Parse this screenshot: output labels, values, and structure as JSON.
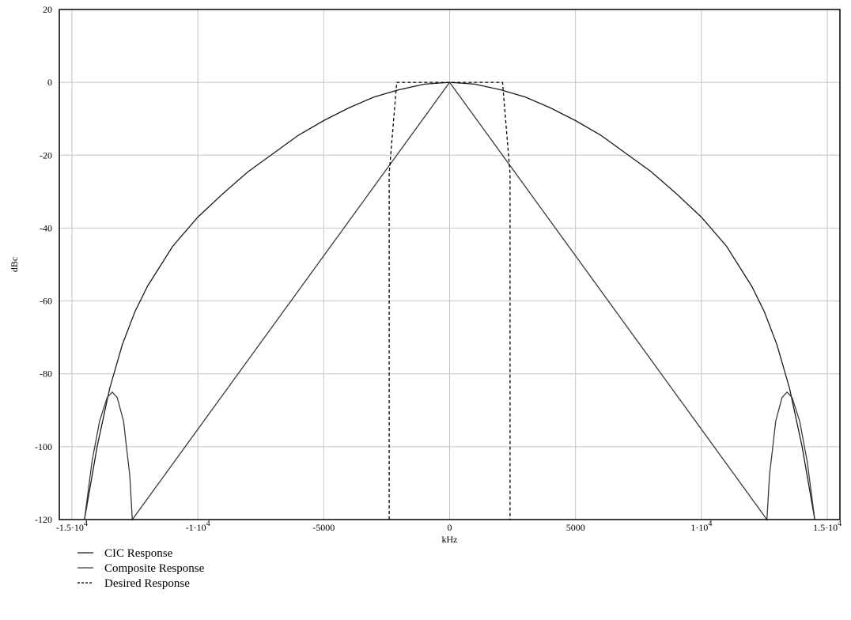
{
  "chart_data": {
    "type": "line",
    "title": "",
    "xlabel": "kHz",
    "ylabel": "dBc",
    "xlim": [
      -15500,
      15500
    ],
    "ylim": [
      -120,
      20
    ],
    "grid": true,
    "legend_position": "bottom-left",
    "x_ticks": [
      {
        "value": -15000,
        "label": "-1.5·10",
        "exp": "4"
      },
      {
        "value": -10000,
        "label": "-1·10",
        "exp": "4"
      },
      {
        "value": -5000,
        "label": "-5000",
        "exp": ""
      },
      {
        "value": 0,
        "label": "0",
        "exp": ""
      },
      {
        "value": 5000,
        "label": "5000",
        "exp": ""
      },
      {
        "value": 10000,
        "label": "1·10",
        "exp": "4"
      },
      {
        "value": 15000,
        "label": "1.5·10",
        "exp": "4"
      }
    ],
    "y_ticks": [
      {
        "value": 20,
        "label": "20"
      },
      {
        "value": 0,
        "label": "0"
      },
      {
        "value": -20,
        "label": "-20"
      },
      {
        "value": -40,
        "label": "-40"
      },
      {
        "value": -60,
        "label": "-60"
      },
      {
        "value": -80,
        "label": "-80"
      },
      {
        "value": -100,
        "label": "-100"
      },
      {
        "value": -120,
        "label": "-120"
      }
    ],
    "series": [
      {
        "name": "CIC Response",
        "style": "solid",
        "color": "#1a1a1a",
        "x": [
          -14500,
          -14000,
          -13500,
          -13000,
          -12500,
          -12000,
          -11000,
          -10000,
          -9000,
          -8000,
          -7000,
          -6000,
          -5000,
          -4000,
          -3000,
          -2000,
          -1000,
          0,
          1000,
          2000,
          3000,
          4000,
          5000,
          6000,
          7000,
          8000,
          9000,
          10000,
          11000,
          12000,
          12500,
          13000,
          13500,
          14000,
          14500
        ],
        "y": [
          -120,
          -100,
          -84,
          -72,
          -63,
          -56,
          -45,
          -37,
          -30.5,
          -24.5,
          -19.5,
          -14.5,
          -10.5,
          -7,
          -4,
          -2,
          -0.5,
          0,
          -0.5,
          -2,
          -4,
          -7,
          -10.5,
          -14.5,
          -19.5,
          -24.5,
          -30.5,
          -37,
          -45,
          -56,
          -63,
          -72,
          -84,
          -100,
          -120
        ]
      },
      {
        "name": "Composite Response",
        "style": "solid",
        "color": "#3a3a3a",
        "x": [
          -14500,
          -14200,
          -13900,
          -13600,
          -13400,
          -13200,
          -12950,
          -12700,
          -12600,
          0,
          12600,
          12700,
          12950,
          13200,
          13400,
          13600,
          13900,
          14200,
          14500
        ],
        "y": [
          -120,
          -104,
          -93,
          -86.5,
          -85,
          -86.5,
          -93,
          -108,
          -120,
          0,
          -120,
          -108,
          -93,
          -86.5,
          -85,
          -86.5,
          -93,
          -104,
          -120
        ]
      },
      {
        "name": "Desired Response",
        "style": "dashed",
        "color": "#000000",
        "x": [
          -2400,
          -2400,
          -2100,
          2100,
          2400,
          2400
        ],
        "y": [
          -120,
          -25,
          0,
          0,
          -25,
          -120
        ]
      }
    ]
  }
}
